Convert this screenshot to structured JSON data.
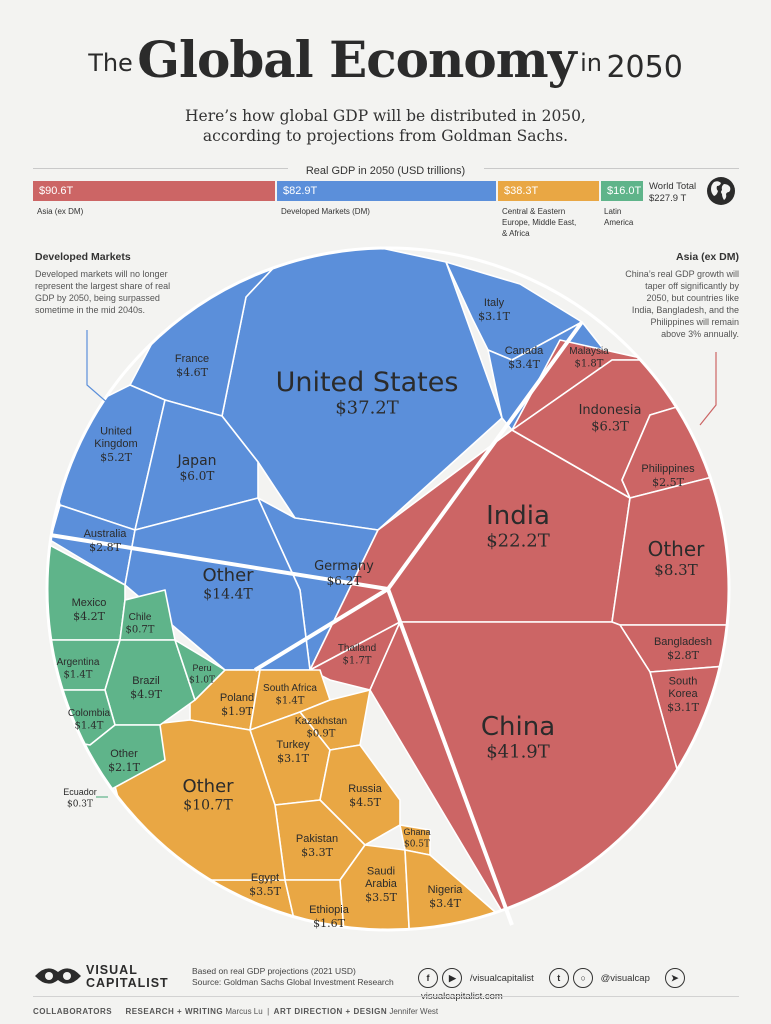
{
  "title": {
    "prefix": "The",
    "main": "Global Economy",
    "in": "in",
    "year": "2050"
  },
  "subtitle": [
    "Here’s how global GDP will be distributed in 2050,",
    "according to projections from Goldman Sachs."
  ],
  "colors": {
    "asia": "#cc6565",
    "dm": "#5b8fda",
    "ceemea": "#e9a744",
    "latam": "#5fb48a",
    "bg": "#f3f3f1"
  },
  "bar": {
    "heading": "Real GDP in 2050 (USD trillions)",
    "segments": [
      {
        "value": "$90.6T",
        "label": [
          "Asia (ex DM)"
        ]
      },
      {
        "value": "$82.9T",
        "label": [
          "Developed Markets (DM)"
        ]
      },
      {
        "value": "$38.3T",
        "label": [
          "Central & Eastern",
          "Europe, Middle East,",
          "& Africa"
        ]
      },
      {
        "value": "$16.0T",
        "label": [
          "Latin",
          "America"
        ]
      }
    ],
    "world_label": "World Total",
    "world_value": "$227.9 T",
    "globe_icon": "globe-icon"
  },
  "notes": {
    "dm": {
      "heading": "Developed Markets",
      "body": [
        "Developed markets will no longer",
        "represent the largest share of real",
        "GDP by 2050, being surpassed",
        "sometime in the mid 2040s."
      ]
    },
    "asia": {
      "heading": "Asia (ex DM)",
      "body": [
        "China’s real GDP growth will",
        "taper off significantly by",
        "2050, but countries like",
        "India, Bangladesh, and the",
        "Philippines will remain",
        "above 3% annually."
      ]
    }
  },
  "chart_data": {
    "type": "voronoi-treemap",
    "unit": "USD trillions",
    "groups": [
      {
        "name": "Developed Markets",
        "color": "#5b8fda",
        "countries": [
          {
            "name": "United States",
            "value": 37.2,
            "label": "$37.2T"
          },
          {
            "name": "Germany",
            "value": 6.2,
            "label": "$6.2T"
          },
          {
            "name": "Japan",
            "value": 6.0,
            "label": "$6.0T"
          },
          {
            "name": "United Kingdom",
            "value": 5.2,
            "label": "$5.2T"
          },
          {
            "name": "France",
            "value": 4.6,
            "label": "$4.6T"
          },
          {
            "name": "Canada",
            "value": 3.4,
            "label": "$3.4T"
          },
          {
            "name": "Italy",
            "value": 3.1,
            "label": "$3.1T"
          },
          {
            "name": "Australia",
            "value": 2.8,
            "label": "$2.8T"
          },
          {
            "name": "Other",
            "value": 14.4,
            "label": "$14.4T"
          }
        ]
      },
      {
        "name": "Asia (ex DM)",
        "color": "#cc6565",
        "countries": [
          {
            "name": "China",
            "value": 41.9,
            "label": "$41.9T"
          },
          {
            "name": "India",
            "value": 22.2,
            "label": "$22.2T"
          },
          {
            "name": "Indonesia",
            "value": 6.3,
            "label": "$6.3T"
          },
          {
            "name": "South Korea",
            "value": 3.1,
            "label": "$3.1T"
          },
          {
            "name": "Bangladesh",
            "value": 2.8,
            "label": "$2.8T"
          },
          {
            "name": "Philippines",
            "value": 2.5,
            "label": "$2.5T"
          },
          {
            "name": "Malaysia",
            "value": 1.8,
            "label": "$1.8T"
          },
          {
            "name": "Thailand",
            "value": 1.7,
            "label": "$1.7T"
          },
          {
            "name": "Other",
            "value": 8.3,
            "label": "$8.3T"
          }
        ]
      },
      {
        "name": "Central & Eastern Europe, Middle East, & Africa",
        "color": "#e9a744",
        "countries": [
          {
            "name": "Russia",
            "value": 4.5,
            "label": "$4.5T"
          },
          {
            "name": "Saudi Arabia",
            "value": 3.5,
            "label": "$3.5T"
          },
          {
            "name": "Egypt",
            "value": 3.5,
            "label": "$3.5T"
          },
          {
            "name": "Nigeria",
            "value": 3.4,
            "label": "$3.4T"
          },
          {
            "name": "Pakistan",
            "value": 3.3,
            "label": "$3.3T"
          },
          {
            "name": "Turkey",
            "value": 3.1,
            "label": "$3.1T"
          },
          {
            "name": "Poland",
            "value": 1.9,
            "label": "$1.9T"
          },
          {
            "name": "Ethiopia",
            "value": 1.6,
            "label": "$1.6T"
          },
          {
            "name": "South Africa",
            "value": 1.4,
            "label": "$1.4T"
          },
          {
            "name": "Kazakhstan",
            "value": 0.9,
            "label": "$0.9T"
          },
          {
            "name": "Ghana",
            "value": 0.5,
            "label": "$0.5T"
          },
          {
            "name": "Other",
            "value": 10.7,
            "label": "$10.7T"
          }
        ]
      },
      {
        "name": "Latin America",
        "color": "#5fb48a",
        "countries": [
          {
            "name": "Brazil",
            "value": 4.9,
            "label": "$4.9T"
          },
          {
            "name": "Mexico",
            "value": 4.2,
            "label": "$4.2T"
          },
          {
            "name": "Argentina",
            "value": 1.4,
            "label": "$1.4T"
          },
          {
            "name": "Colombia",
            "value": 1.4,
            "label": "$1.4T"
          },
          {
            "name": "Peru",
            "value": 1.0,
            "label": "$1.0T"
          },
          {
            "name": "Chile",
            "value": 0.7,
            "label": "$0.7T"
          },
          {
            "name": "Ecuador",
            "value": 0.3,
            "label": "$0.3T"
          },
          {
            "name": "Other",
            "value": 2.1,
            "label": "$2.1T"
          }
        ]
      }
    ],
    "cell_labels": {
      "United States": [
        "United States"
      ],
      "United Kingdom": [
        "United",
        "Kingdom"
      ],
      "South Korea": [
        "South",
        "Korea"
      ],
      "Saudi Arabia": [
        "Saudi",
        "Arabia"
      ]
    }
  },
  "footer": {
    "brand_top": "VISUAL",
    "brand_bottom": "CAPITALIST",
    "logo_icon": "visual-capitalist-logo-icon",
    "source_lines": [
      "Based on real GDP projections (2021 USD)",
      "Source: Goldman Sachs Global Investment Research"
    ],
    "handle_fb_yt": "/visualcapitalist",
    "handle_tw_ig": "@visualcap",
    "site": "visualcapitalist.com",
    "collab_label": "COLLABORATORS",
    "research_label": "RESEARCH + WRITING",
    "research_name": "Marcus Lu",
    "art_label": "ART DIRECTION + DESIGN",
    "art_name": "Jennifer West"
  }
}
